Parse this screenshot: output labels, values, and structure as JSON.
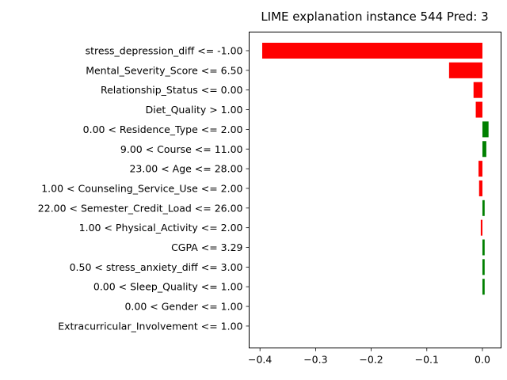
{
  "chart_data": {
    "type": "bar",
    "orientation": "horizontal",
    "title": "LIME explanation instance 544 Pred: 3",
    "xlabel": "",
    "ylabel": "",
    "xlim": [
      -0.4195,
      0.0335
    ],
    "xticks": [
      "−0.4",
      "−0.3",
      "−0.2",
      "−0.1",
      "0.0"
    ],
    "xtick_values": [
      -0.4,
      -0.3,
      -0.2,
      -0.1,
      0.0
    ],
    "positive_color": "#008000",
    "negative_color": "#ff0000",
    "grid": false,
    "legend": "none",
    "categories": [
      "stress_depression_diff <= -1.00",
      "Mental_Severity_Score <= 6.50",
      "Relationship_Status <= 0.00",
      "Diet_Quality > 1.00",
      "0.00 < Residence_Type <= 2.00",
      "9.00 < Course <= 11.00",
      "23.00 < Age <= 28.00",
      "1.00 < Counseling_Service_Use <= 2.00",
      "22.00 < Semester_Credit_Load <= 26.00",
      "1.00 < Physical_Activity <= 2.00",
      "CGPA <= 3.29",
      "0.50 < stress_anxiety_diff <= 3.00",
      "0.00 < Sleep_Quality <= 1.00",
      "0.00 < Gender <= 1.00",
      "Extracurricular_Involvement <= 1.00"
    ],
    "values": [
      -0.396,
      -0.06,
      -0.016,
      -0.012,
      0.011,
      0.007,
      -0.007,
      -0.006,
      0.004,
      -0.003,
      0.004,
      0.004,
      0.004,
      0.0,
      0.0
    ]
  }
}
